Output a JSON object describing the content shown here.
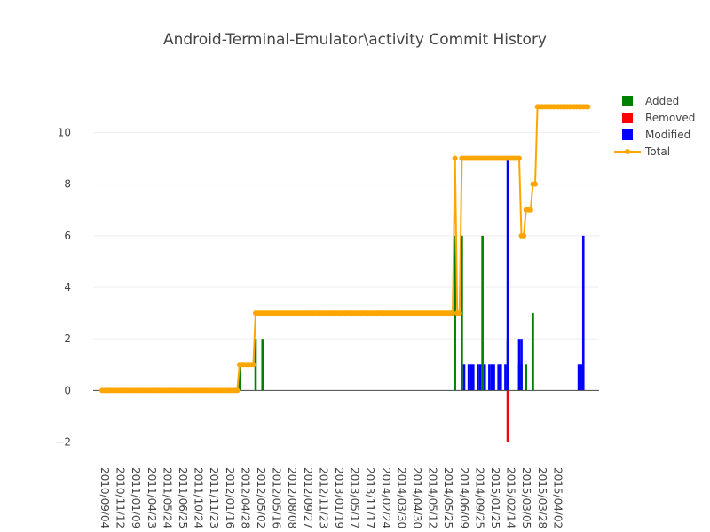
{
  "chart_data": {
    "type": "bar",
    "title": "Android-Terminal-Emulator\\activity Commit History",
    "xlabel": "",
    "ylabel": "",
    "ylim": [
      -2.05,
      11.7
    ],
    "yticks": [
      -2,
      0,
      2,
      4,
      6,
      8,
      10
    ],
    "grid": true,
    "legend_position": "top-right",
    "x_tick_labels": [
      "2010/09/04",
      "2010/11/12",
      "2011/01/09",
      "2011/04/23",
      "2011/05/24",
      "2011/06/25",
      "2011/10/24",
      "2011/11/23",
      "2012/01/16",
      "2012/04/28",
      "2012/05/02",
      "2012/05/16",
      "2012/08/08",
      "2012/09/27",
      "2012/11/23",
      "2013/01/19",
      "2013/05/17",
      "2013/11/17",
      "2014/02/24",
      "2014/03/30",
      "2014/04/30",
      "2014/05/12",
      "2014/05/25",
      "2014/06/09",
      "2014/09/25",
      "2015/01/25",
      "2015/02/14",
      "2015/03/05",
      "2015/03/28",
      "2015/04/02"
    ],
    "total": [
      0,
      0,
      0,
      0,
      0,
      0,
      0,
      0,
      0,
      0,
      0,
      0,
      0,
      0,
      0,
      0,
      0,
      0,
      0,
      0,
      0,
      0,
      0,
      0,
      0,
      0,
      0,
      0,
      0,
      0,
      0,
      0,
      0,
      0,
      0,
      0,
      0,
      0,
      0,
      0,
      0,
      0,
      0,
      0,
      0,
      0,
      0,
      0,
      0,
      0,
      0,
      0,
      0,
      0,
      0,
      0,
      0,
      0,
      0,
      0,
      1,
      1,
      1,
      1,
      1,
      1,
      1,
      3,
      3,
      3,
      3,
      3,
      3,
      3,
      3,
      3,
      3,
      3,
      3,
      3,
      3,
      3,
      3,
      3,
      3,
      3,
      3,
      3,
      3,
      3,
      3,
      3,
      3,
      3,
      3,
      3,
      3,
      3,
      3,
      3,
      3,
      3,
      3,
      3,
      3,
      3,
      3,
      3,
      3,
      3,
      3,
      3,
      3,
      3,
      3,
      3,
      3,
      3,
      3,
      3,
      3,
      3,
      3,
      3,
      3,
      3,
      3,
      3,
      3,
      3,
      3,
      3,
      3,
      3,
      3,
      3,
      3,
      3,
      3,
      3,
      3,
      3,
      3,
      3,
      3,
      3,
      3,
      3,
      3,
      3,
      3,
      3,
      3,
      3,
      9,
      3,
      3,
      9,
      9,
      9,
      9,
      9,
      9,
      9,
      9,
      9,
      9,
      9,
      9,
      9,
      9,
      9,
      9,
      9,
      9,
      9,
      9,
      9,
      9,
      9,
      9,
      9,
      9,
      6,
      6,
      7,
      7,
      7,
      8,
      8,
      11,
      11,
      11,
      11,
      11,
      11,
      11,
      11,
      11,
      11,
      11,
      11,
      11,
      11,
      11,
      11,
      11,
      11,
      11,
      11,
      11,
      11,
      11
    ],
    "series": [
      {
        "name": "Added",
        "color": "#008000",
        "bars": [
          [
            60,
            1
          ],
          [
            67,
            2
          ],
          [
            70,
            2
          ],
          [
            154,
            6
          ],
          [
            157,
            6
          ],
          [
            166,
            6
          ],
          [
            177,
            2
          ],
          [
            182,
            1
          ],
          [
            183,
            1
          ],
          [
            185,
            1
          ],
          [
            188,
            3
          ]
        ]
      },
      {
        "name": "Removed",
        "color": "#ff0000",
        "bars": [
          [
            177,
            -2
          ]
        ]
      },
      {
        "name": "Modified",
        "color": "#0000ff",
        "bars": [
          [
            158,
            1
          ],
          [
            160,
            1
          ],
          [
            161,
            1
          ],
          [
            162,
            1
          ],
          [
            164,
            1
          ],
          [
            165,
            1
          ],
          [
            167,
            1
          ],
          [
            169,
            1
          ],
          [
            170,
            1
          ],
          [
            171,
            1
          ],
          [
            173,
            1
          ],
          [
            174,
            1
          ],
          [
            176,
            1
          ],
          [
            177,
            9
          ],
          [
            182,
            2
          ],
          [
            183,
            2
          ],
          [
            208,
            1
          ],
          [
            209,
            1
          ],
          [
            210,
            6
          ]
        ]
      },
      {
        "name": "Total",
        "color": "#ffa500"
      }
    ]
  }
}
